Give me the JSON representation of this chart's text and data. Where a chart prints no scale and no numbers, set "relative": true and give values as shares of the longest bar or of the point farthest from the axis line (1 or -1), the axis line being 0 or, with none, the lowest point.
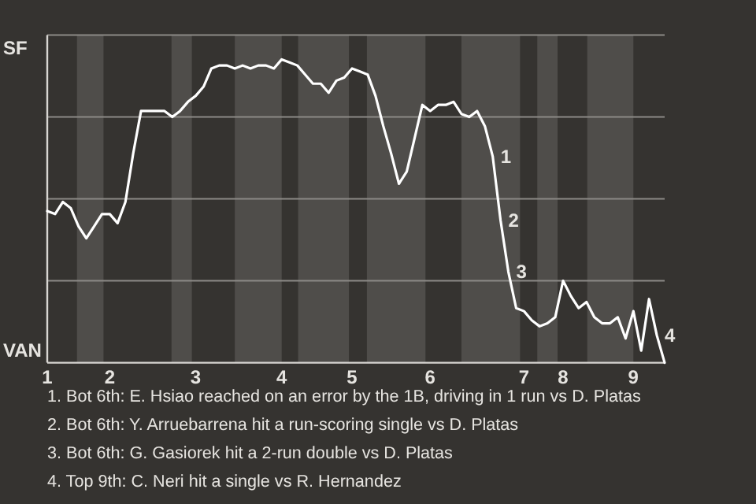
{
  "chart_data": {
    "type": "line",
    "relative": true,
    "categories": [
      "1",
      null,
      null,
      null,
      null,
      null,
      null,
      null,
      "2",
      null,
      null,
      null,
      null,
      null,
      null,
      null,
      null,
      null,
      null,
      "3",
      null,
      null,
      null,
      null,
      null,
      null,
      null,
      null,
      null,
      null,
      "4",
      null,
      null,
      null,
      null,
      null,
      null,
      null,
      null,
      "5",
      null,
      null,
      null,
      null,
      null,
      null,
      null,
      null,
      null,
      "6",
      null,
      null,
      null,
      null,
      null,
      null,
      null,
      null,
      null,
      null,
      null,
      "7",
      null,
      null,
      null,
      null,
      "8",
      null,
      null,
      null,
      null,
      null,
      null,
      null,
      null,
      "9",
      null,
      null,
      null,
      null
    ],
    "series": [
      {
        "color": "#ffffff",
        "values": [
          0.5,
          0.49,
          0.53,
          0.51,
          0.45,
          0.41,
          0.45,
          0.49,
          0.49,
          0.46,
          0.53,
          0.69,
          0.83,
          0.83,
          0.83,
          0.83,
          0.81,
          0.83,
          0.86,
          0.88,
          0.91,
          0.97,
          0.98,
          0.98,
          0.97,
          0.98,
          0.97,
          0.98,
          0.98,
          0.97,
          1,
          0.99,
          0.98,
          0.95,
          0.92,
          0.92,
          0.89,
          0.93,
          0.94,
          0.97,
          0.96,
          0.95,
          0.88,
          0.78,
          0.69,
          0.59,
          0.63,
          0.74,
          0.85,
          0.83,
          0.85,
          0.85,
          0.86,
          0.82,
          0.81,
          0.83,
          0.78,
          0.68,
          0.47,
          0.3,
          0.18,
          0.17,
          0.14,
          0.12,
          0.13,
          0.15,
          0.27,
          0.22,
          0.18,
          0.2,
          0.15,
          0.13,
          0.13,
          0.15,
          0.08,
          0.17,
          0.04,
          0.21,
          0.09,
          0
        ]
      }
    ],
    "grid": "y",
    "annotations": [
      "1",
      "2",
      "3",
      "4",
      "SF",
      "VAN",
      "1. Bot 6th: E. Hsiao reached on an error by the 1B, driving in 1 run vs D. Platas",
      "2. Bot 6th: Y. Arruebarrena hit a run-scoring single vs D. Platas",
      "3. Bot 6th: G. Gasiorek hit a 2-run double vs D. Platas",
      "4. Top 9th: C. Neri hit a single vs R. Hernandez"
    ]
  }
}
